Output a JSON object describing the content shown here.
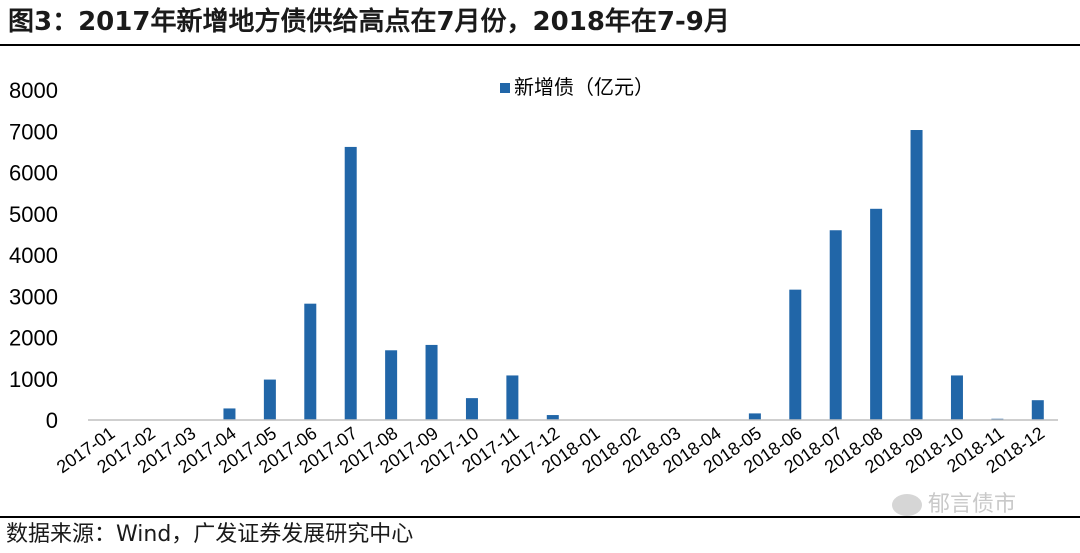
{
  "header": {
    "title": "图3：2017年新增地方债供给高点在7月份，2018年在7-9月"
  },
  "footer": {
    "source": "数据来源：Wind，广发证券发展研究中心",
    "watermark": "郁言债市"
  },
  "chart_data": {
    "type": "bar",
    "categories": [
      "2017-01",
      "2017-02",
      "2017-03",
      "2017-04",
      "2017-05",
      "2017-06",
      "2017-07",
      "2017-08",
      "2017-09",
      "2017-10",
      "2017-11",
      "2017-12",
      "2018-01",
      "2018-02",
      "2018-03",
      "2018-04",
      "2018-05",
      "2018-06",
      "2018-07",
      "2018-08",
      "2018-09",
      "2018-10",
      "2018-11",
      "2018-12"
    ],
    "series": [
      {
        "name": "新增债（亿元）",
        "color": "#2166a8",
        "values": [
          0,
          0,
          0,
          280,
          980,
          2820,
          6620,
          1690,
          1820,
          530,
          1080,
          120,
          0,
          0,
          0,
          0,
          160,
          3160,
          4600,
          5120,
          7030,
          1080,
          30,
          480
        ]
      }
    ],
    "yticks": [
      "0",
      "1000",
      "2000",
      "3000",
      "4000",
      "5000",
      "6000",
      "7000",
      "8000"
    ],
    "ylim": [
      0,
      8000
    ],
    "xlabel": "",
    "ylabel": "",
    "legend_position": "top-center",
    "grid": false
  }
}
